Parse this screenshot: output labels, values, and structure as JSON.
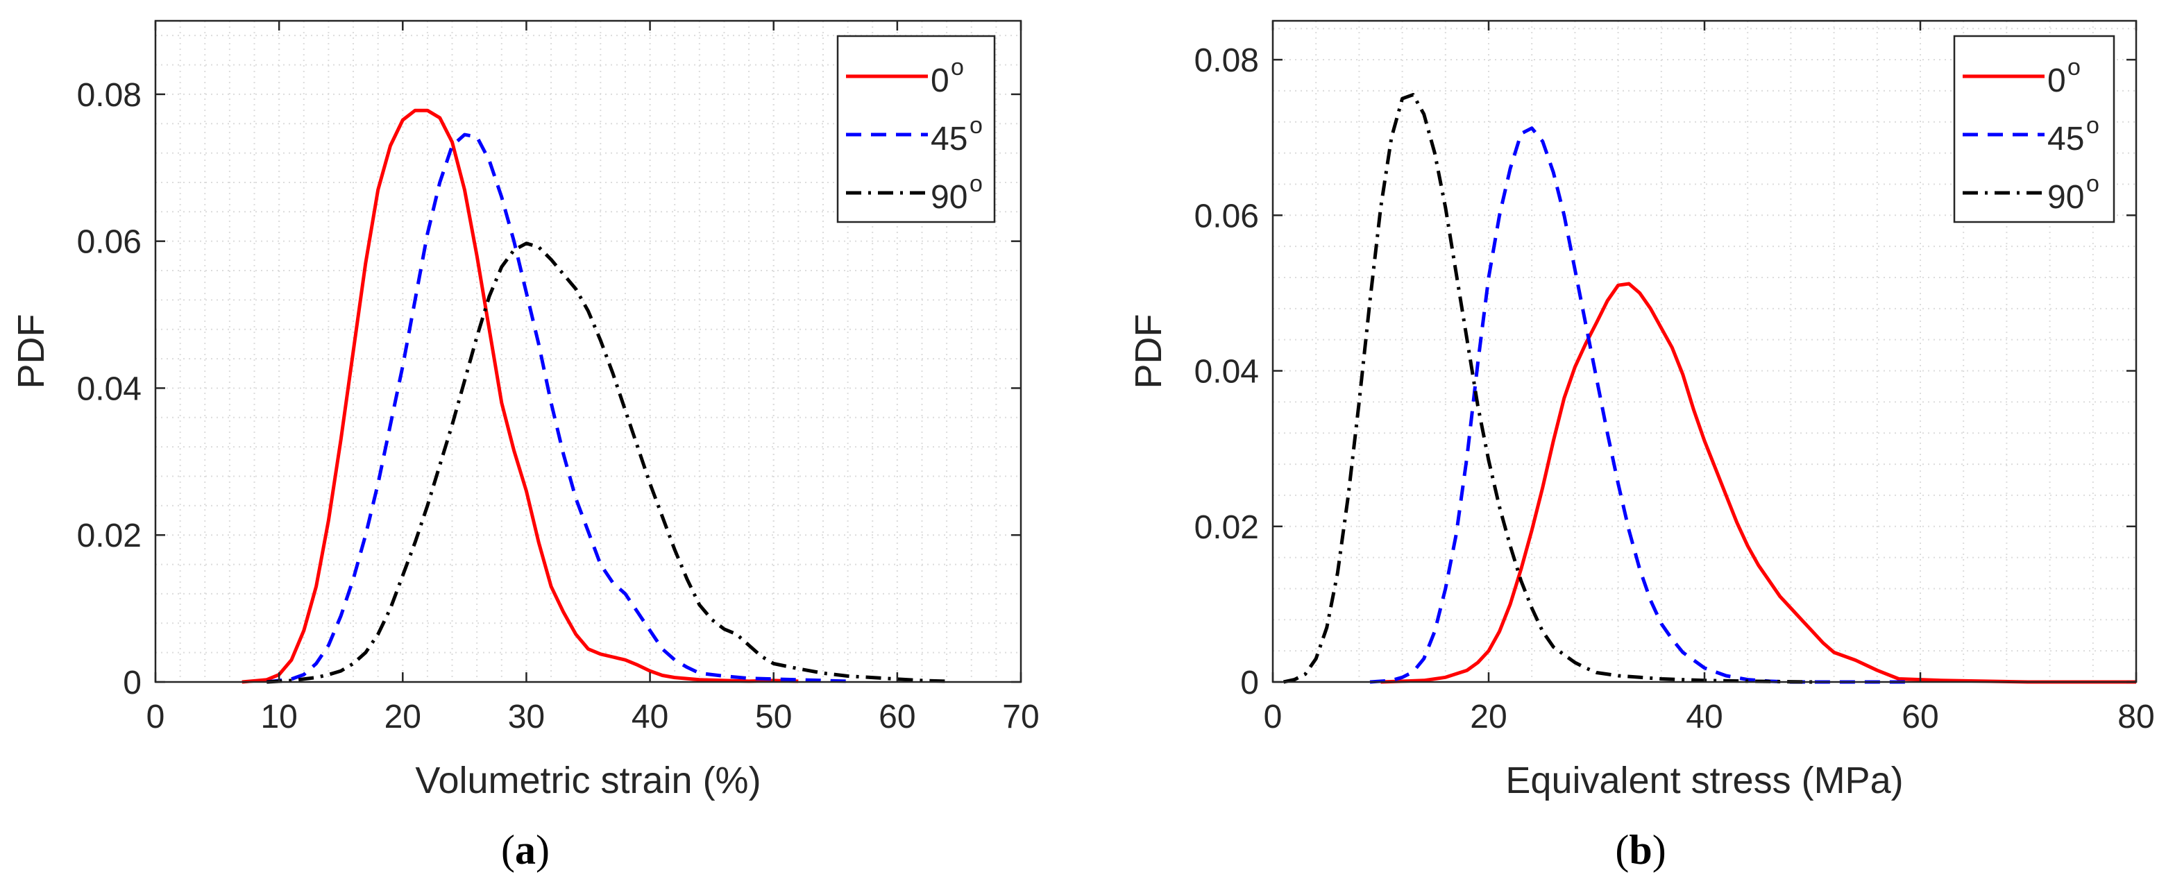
{
  "chart_data": [
    {
      "type": "line",
      "panel_label_open": "(",
      "panel_label_letter": "a",
      "panel_label_close": ")",
      "xlabel": "Volumetric strain (%)",
      "ylabel": "PDF",
      "xlim": [
        0,
        70
      ],
      "ylim": [
        0,
        0.09
      ],
      "xticks": [
        0,
        10,
        20,
        30,
        40,
        50,
        60,
        70
      ],
      "xtick_labels": [
        "0",
        "10",
        "20",
        "30",
        "40",
        "50",
        "60",
        "70"
      ],
      "yticks": [
        0,
        0.02,
        0.04,
        0.06,
        0.08
      ],
      "ytick_labels": [
        "0",
        "0.02",
        "0.04",
        "0.06",
        "0.08"
      ],
      "grid": "minor dotted",
      "legend_position": "top-right",
      "series": [
        {
          "name": "0",
          "superscript": "o",
          "color": "#ff0000",
          "dash": "solid",
          "points": [
            [
              7,
              0
            ],
            [
              9,
              0.0003
            ],
            [
              10,
              0.001
            ],
            [
              11,
              0.003
            ],
            [
              12,
              0.007
            ],
            [
              13,
              0.013
            ],
            [
              14,
              0.022
            ],
            [
              15,
              0.033
            ],
            [
              16,
              0.045
            ],
            [
              17,
              0.057
            ],
            [
              18,
              0.067
            ],
            [
              19,
              0.073
            ],
            [
              20,
              0.0765
            ],
            [
              21,
              0.0778
            ],
            [
              22,
              0.0778
            ],
            [
              23,
              0.0768
            ],
            [
              24,
              0.0735
            ],
            [
              25,
              0.067
            ],
            [
              26,
              0.058
            ],
            [
              27,
              0.048
            ],
            [
              28,
              0.038
            ],
            [
              29,
              0.0315
            ],
            [
              30,
              0.026
            ],
            [
              31,
              0.019
            ],
            [
              32,
              0.013
            ],
            [
              33,
              0.0095
            ],
            [
              34,
              0.0065
            ],
            [
              35,
              0.0045
            ],
            [
              36,
              0.0038
            ],
            [
              37,
              0.0034
            ],
            [
              38,
              0.003
            ],
            [
              39,
              0.0023
            ],
            [
              40,
              0.0015
            ],
            [
              41,
              0.0009
            ],
            [
              42,
              0.0006
            ],
            [
              44,
              0.0003
            ],
            [
              46,
              0.0002
            ],
            [
              48,
              0.0001
            ],
            [
              50,
              0.0002
            ],
            [
              52,
              0.0001
            ]
          ]
        },
        {
          "name": "45",
          "superscript": "o",
          "color": "#0000ff",
          "dash": "dashed",
          "points": [
            [
              9,
              0
            ],
            [
              11,
              0.0004
            ],
            [
              12,
              0.001
            ],
            [
              13,
              0.0025
            ],
            [
              14,
              0.005
            ],
            [
              15,
              0.009
            ],
            [
              16,
              0.014
            ],
            [
              17,
              0.02
            ],
            [
              18,
              0.027
            ],
            [
              19,
              0.035
            ],
            [
              20,
              0.043
            ],
            [
              21,
              0.052
            ],
            [
              22,
              0.061
            ],
            [
              23,
              0.068
            ],
            [
              24,
              0.073
            ],
            [
              25,
              0.0745
            ],
            [
              26,
              0.0742
            ],
            [
              27,
              0.071
            ],
            [
              28,
              0.066
            ],
            [
              29,
              0.06
            ],
            [
              30,
              0.053
            ],
            [
              31,
              0.046
            ],
            [
              32,
              0.038
            ],
            [
              33,
              0.031
            ],
            [
              34,
              0.025
            ],
            [
              35,
              0.0205
            ],
            [
              36,
              0.016
            ],
            [
              37,
              0.0135
            ],
            [
              38,
              0.012
            ],
            [
              39,
              0.0095
            ],
            [
              40,
              0.007
            ],
            [
              41,
              0.0045
            ],
            [
              42,
              0.003
            ],
            [
              43,
              0.002
            ],
            [
              44,
              0.0012
            ],
            [
              46,
              0.0008
            ],
            [
              48,
              0.0005
            ],
            [
              50,
              0.0004
            ],
            [
              52,
              0.0003
            ],
            [
              54,
              0.0002
            ],
            [
              56,
              0.0001
            ]
          ]
        },
        {
          "name": "90",
          "superscript": "o",
          "color": "#000000",
          "dash": "dashdot",
          "points": [
            [
              9,
              0
            ],
            [
              11,
              0.0002
            ],
            [
              13,
              0.0006
            ],
            [
              14,
              0.001
            ],
            [
              15,
              0.0015
            ],
            [
              16,
              0.0025
            ],
            [
              17,
              0.004
            ],
            [
              18,
              0.0065
            ],
            [
              19,
              0.01
            ],
            [
              20,
              0.0145
            ],
            [
              21,
              0.019
            ],
            [
              22,
              0.024
            ],
            [
              23,
              0.0295
            ],
            [
              24,
              0.035
            ],
            [
              25,
              0.041
            ],
            [
              26,
              0.047
            ],
            [
              27,
              0.0525
            ],
            [
              28,
              0.0565
            ],
            [
              29,
              0.0588
            ],
            [
              30,
              0.0597
            ],
            [
              31,
              0.0592
            ],
            [
              32,
              0.0575
            ],
            [
              33,
              0.0555
            ],
            [
              34,
              0.0535
            ],
            [
              35,
              0.0505
            ],
            [
              36,
              0.0465
            ],
            [
              37,
              0.042
            ],
            [
              38,
              0.037
            ],
            [
              39,
              0.032
            ],
            [
              40,
              0.027
            ],
            [
              41,
              0.0225
            ],
            [
              42,
              0.018
            ],
            [
              43,
              0.014
            ],
            [
              44,
              0.0105
            ],
            [
              45,
              0.0085
            ],
            [
              46,
              0.0072
            ],
            [
              47,
              0.0065
            ],
            [
              48,
              0.005
            ],
            [
              49,
              0.0035
            ],
            [
              50,
              0.0025
            ],
            [
              52,
              0.0018
            ],
            [
              54,
              0.0012
            ],
            [
              56,
              0.0008
            ],
            [
              58,
              0.0006
            ],
            [
              60,
              0.0004
            ],
            [
              62,
              0.0002
            ],
            [
              64,
              0.0001
            ]
          ]
        }
      ]
    },
    {
      "type": "line",
      "panel_label_open": "(",
      "panel_label_letter": "b",
      "panel_label_close": ")",
      "xlabel": "Equivalent stress (MPa)",
      "ylabel": "PDF",
      "xlim": [
        0,
        80
      ],
      "ylim": [
        0,
        0.085
      ],
      "xticks": [
        0,
        20,
        40,
        60,
        80
      ],
      "xtick_labels": [
        "0",
        "20",
        "40",
        "60",
        "80"
      ],
      "yticks": [
        0,
        0.02,
        0.04,
        0.06,
        0.08
      ],
      "ytick_labels": [
        "0",
        "0.02",
        "0.04",
        "0.06",
        "0.08"
      ],
      "grid": "minor dotted",
      "legend_position": "top-right",
      "series": [
        {
          "name": "0",
          "superscript": "o",
          "color": "#ff0000",
          "dash": "solid",
          "points": [
            [
              10,
              0
            ],
            [
              14,
              0.0002
            ],
            [
              16,
              0.0006
            ],
            [
              18,
              0.0015
            ],
            [
              19,
              0.0025
            ],
            [
              20,
              0.004
            ],
            [
              21,
              0.0065
            ],
            [
              22,
              0.01
            ],
            [
              23,
              0.0145
            ],
            [
              24,
              0.0195
            ],
            [
              25,
              0.025
            ],
            [
              26,
              0.031
            ],
            [
              27,
              0.0365
            ],
            [
              28,
              0.0405
            ],
            [
              29,
              0.0435
            ],
            [
              30,
              0.0462
            ],
            [
              31,
              0.049
            ],
            [
              32,
              0.051
            ],
            [
              33,
              0.0512
            ],
            [
              34,
              0.05
            ],
            [
              35,
              0.048
            ],
            [
              36,
              0.0455
            ],
            [
              37,
              0.043
            ],
            [
              38,
              0.0395
            ],
            [
              39,
              0.035
            ],
            [
              40,
              0.031
            ],
            [
              41,
              0.0275
            ],
            [
              42,
              0.024
            ],
            [
              43,
              0.0205
            ],
            [
              44,
              0.0175
            ],
            [
              45,
              0.015
            ],
            [
              46,
              0.013
            ],
            [
              47,
              0.011
            ],
            [
              48,
              0.0095
            ],
            [
              49,
              0.008
            ],
            [
              50,
              0.0065
            ],
            [
              51,
              0.005
            ],
            [
              52,
              0.0038
            ],
            [
              54,
              0.0028
            ],
            [
              56,
              0.0015
            ],
            [
              58,
              0.0004
            ],
            [
              62,
              0.0002
            ],
            [
              66,
              0.0001
            ],
            [
              70,
              0
            ],
            [
              75,
              0
            ],
            [
              80,
              0
            ]
          ]
        },
        {
          "name": "45",
          "superscript": "o",
          "color": "#0000ff",
          "dash": "dashed",
          "points": [
            [
              9,
              0
            ],
            [
              11,
              0.0002
            ],
            [
              12,
              0.0006
            ],
            [
              13,
              0.0013
            ],
            [
              14,
              0.003
            ],
            [
              15,
              0.0065
            ],
            [
              16,
              0.012
            ],
            [
              17,
              0.019
            ],
            [
              18,
              0.029
            ],
            [
              19,
              0.041
            ],
            [
              20,
              0.052
            ],
            [
              21,
              0.06
            ],
            [
              22,
              0.066
            ],
            [
              23,
              0.0705
            ],
            [
              24,
              0.0712
            ],
            [
              25,
              0.0695
            ],
            [
              26,
              0.0655
            ],
            [
              27,
              0.06
            ],
            [
              28,
              0.053
            ],
            [
              29,
              0.046
            ],
            [
              30,
              0.039
            ],
            [
              31,
              0.032
            ],
            [
              32,
              0.0255
            ],
            [
              33,
              0.0195
            ],
            [
              34,
              0.0145
            ],
            [
              35,
              0.0105
            ],
            [
              36,
              0.0075
            ],
            [
              37,
              0.0055
            ],
            [
              38,
              0.0038
            ],
            [
              40,
              0.0018
            ],
            [
              42,
              0.0008
            ],
            [
              44,
              0.0003
            ],
            [
              46,
              0.0001
            ],
            [
              48,
              0
            ],
            [
              52,
              0
            ],
            [
              59,
              0
            ]
          ]
        },
        {
          "name": "90",
          "superscript": "o",
          "color": "#000000",
          "dash": "dashdot",
          "points": [
            [
              1,
              0
            ],
            [
              2,
              0.0003
            ],
            [
              3,
              0.001
            ],
            [
              4,
              0.003
            ],
            [
              5,
              0.007
            ],
            [
              6,
              0.014
            ],
            [
              7,
              0.024
            ],
            [
              8,
              0.036
            ],
            [
              9,
              0.049
            ],
            [
              10,
              0.061
            ],
            [
              11,
              0.07
            ],
            [
              12,
              0.075
            ],
            [
              13,
              0.0755
            ],
            [
              14,
              0.073
            ],
            [
              15,
              0.068
            ],
            [
              16,
              0.061
            ],
            [
              17,
              0.0525
            ],
            [
              18,
              0.044
            ],
            [
              19,
              0.0355
            ],
            [
              20,
              0.0285
            ],
            [
              21,
              0.0225
            ],
            [
              22,
              0.0175
            ],
            [
              23,
              0.013
            ],
            [
              24,
              0.0095
            ],
            [
              25,
              0.0065
            ],
            [
              26,
              0.0045
            ],
            [
              27,
              0.0035
            ],
            [
              28,
              0.0025
            ],
            [
              29,
              0.0018
            ],
            [
              30,
              0.0012
            ],
            [
              32,
              0.0008
            ],
            [
              34,
              0.0006
            ],
            [
              36,
              0.0004
            ],
            [
              40,
              0.0002
            ],
            [
              44,
              0.0001
            ],
            [
              50,
              0
            ]
          ]
        }
      ]
    }
  ]
}
